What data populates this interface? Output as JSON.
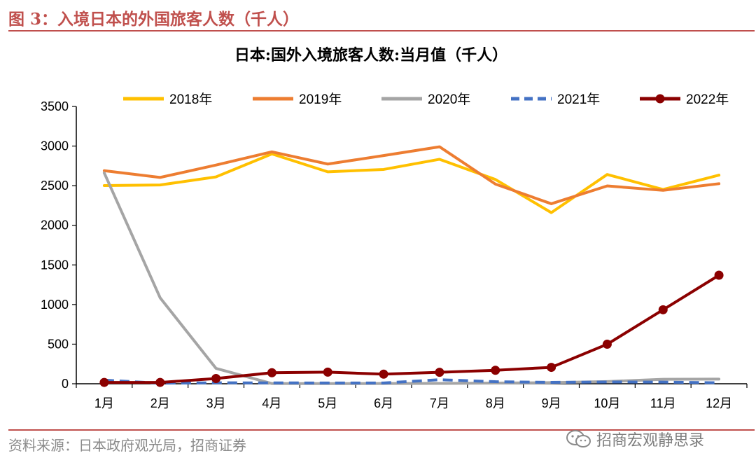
{
  "figure": {
    "title": "图 3：入境日本的外国旅客人数（千人）",
    "source": "资料来源：日本政府观光局，招商证券",
    "watermark": "招商宏观静思录",
    "accent_color": "#c0504d"
  },
  "chart_data": {
    "type": "line",
    "title": "日本:国外入境旅客人数:当月值（千人）",
    "xlabel": "",
    "ylabel": "",
    "ylim": [
      0,
      3500
    ],
    "yticks": [
      0,
      500,
      1000,
      1500,
      2000,
      2500,
      3000,
      3500
    ],
    "grid": false,
    "legend_position": "top",
    "categories": [
      "1月",
      "2月",
      "3月",
      "4月",
      "5月",
      "6月",
      "7月",
      "8月",
      "9月",
      "10月",
      "11月",
      "12月"
    ],
    "series": [
      {
        "name": "2018年",
        "color": "#ffc000",
        "dash": false,
        "markers": false,
        "values": [
          2501,
          2509,
          2611,
          2901,
          2675,
          2705,
          2833,
          2578,
          2160,
          2641,
          2452,
          2633
        ]
      },
      {
        "name": "2019年",
        "color": "#ed7d31",
        "dash": false,
        "markers": false,
        "values": [
          2689,
          2604,
          2760,
          2927,
          2773,
          2880,
          2991,
          2520,
          2272,
          2497,
          2441,
          2525
        ]
      },
      {
        "name": "2020年",
        "color": "#a5a5a5",
        "dash": false,
        "markers": false,
        "values": [
          2661,
          1085,
          194,
          3,
          2,
          3,
          4,
          9,
          14,
          28,
          56,
          59
        ]
      },
      {
        "name": "2021年",
        "color": "#4472c4",
        "dash": true,
        "markers": false,
        "values": [
          46,
          7,
          12,
          11,
          10,
          10,
          51,
          26,
          18,
          22,
          21,
          12
        ]
      },
      {
        "name": "2022年",
        "color": "#8b0000",
        "dash": false,
        "markers": true,
        "values": [
          17,
          17,
          66,
          139,
          147,
          121,
          145,
          170,
          207,
          499,
          934,
          1370
        ]
      }
    ]
  }
}
